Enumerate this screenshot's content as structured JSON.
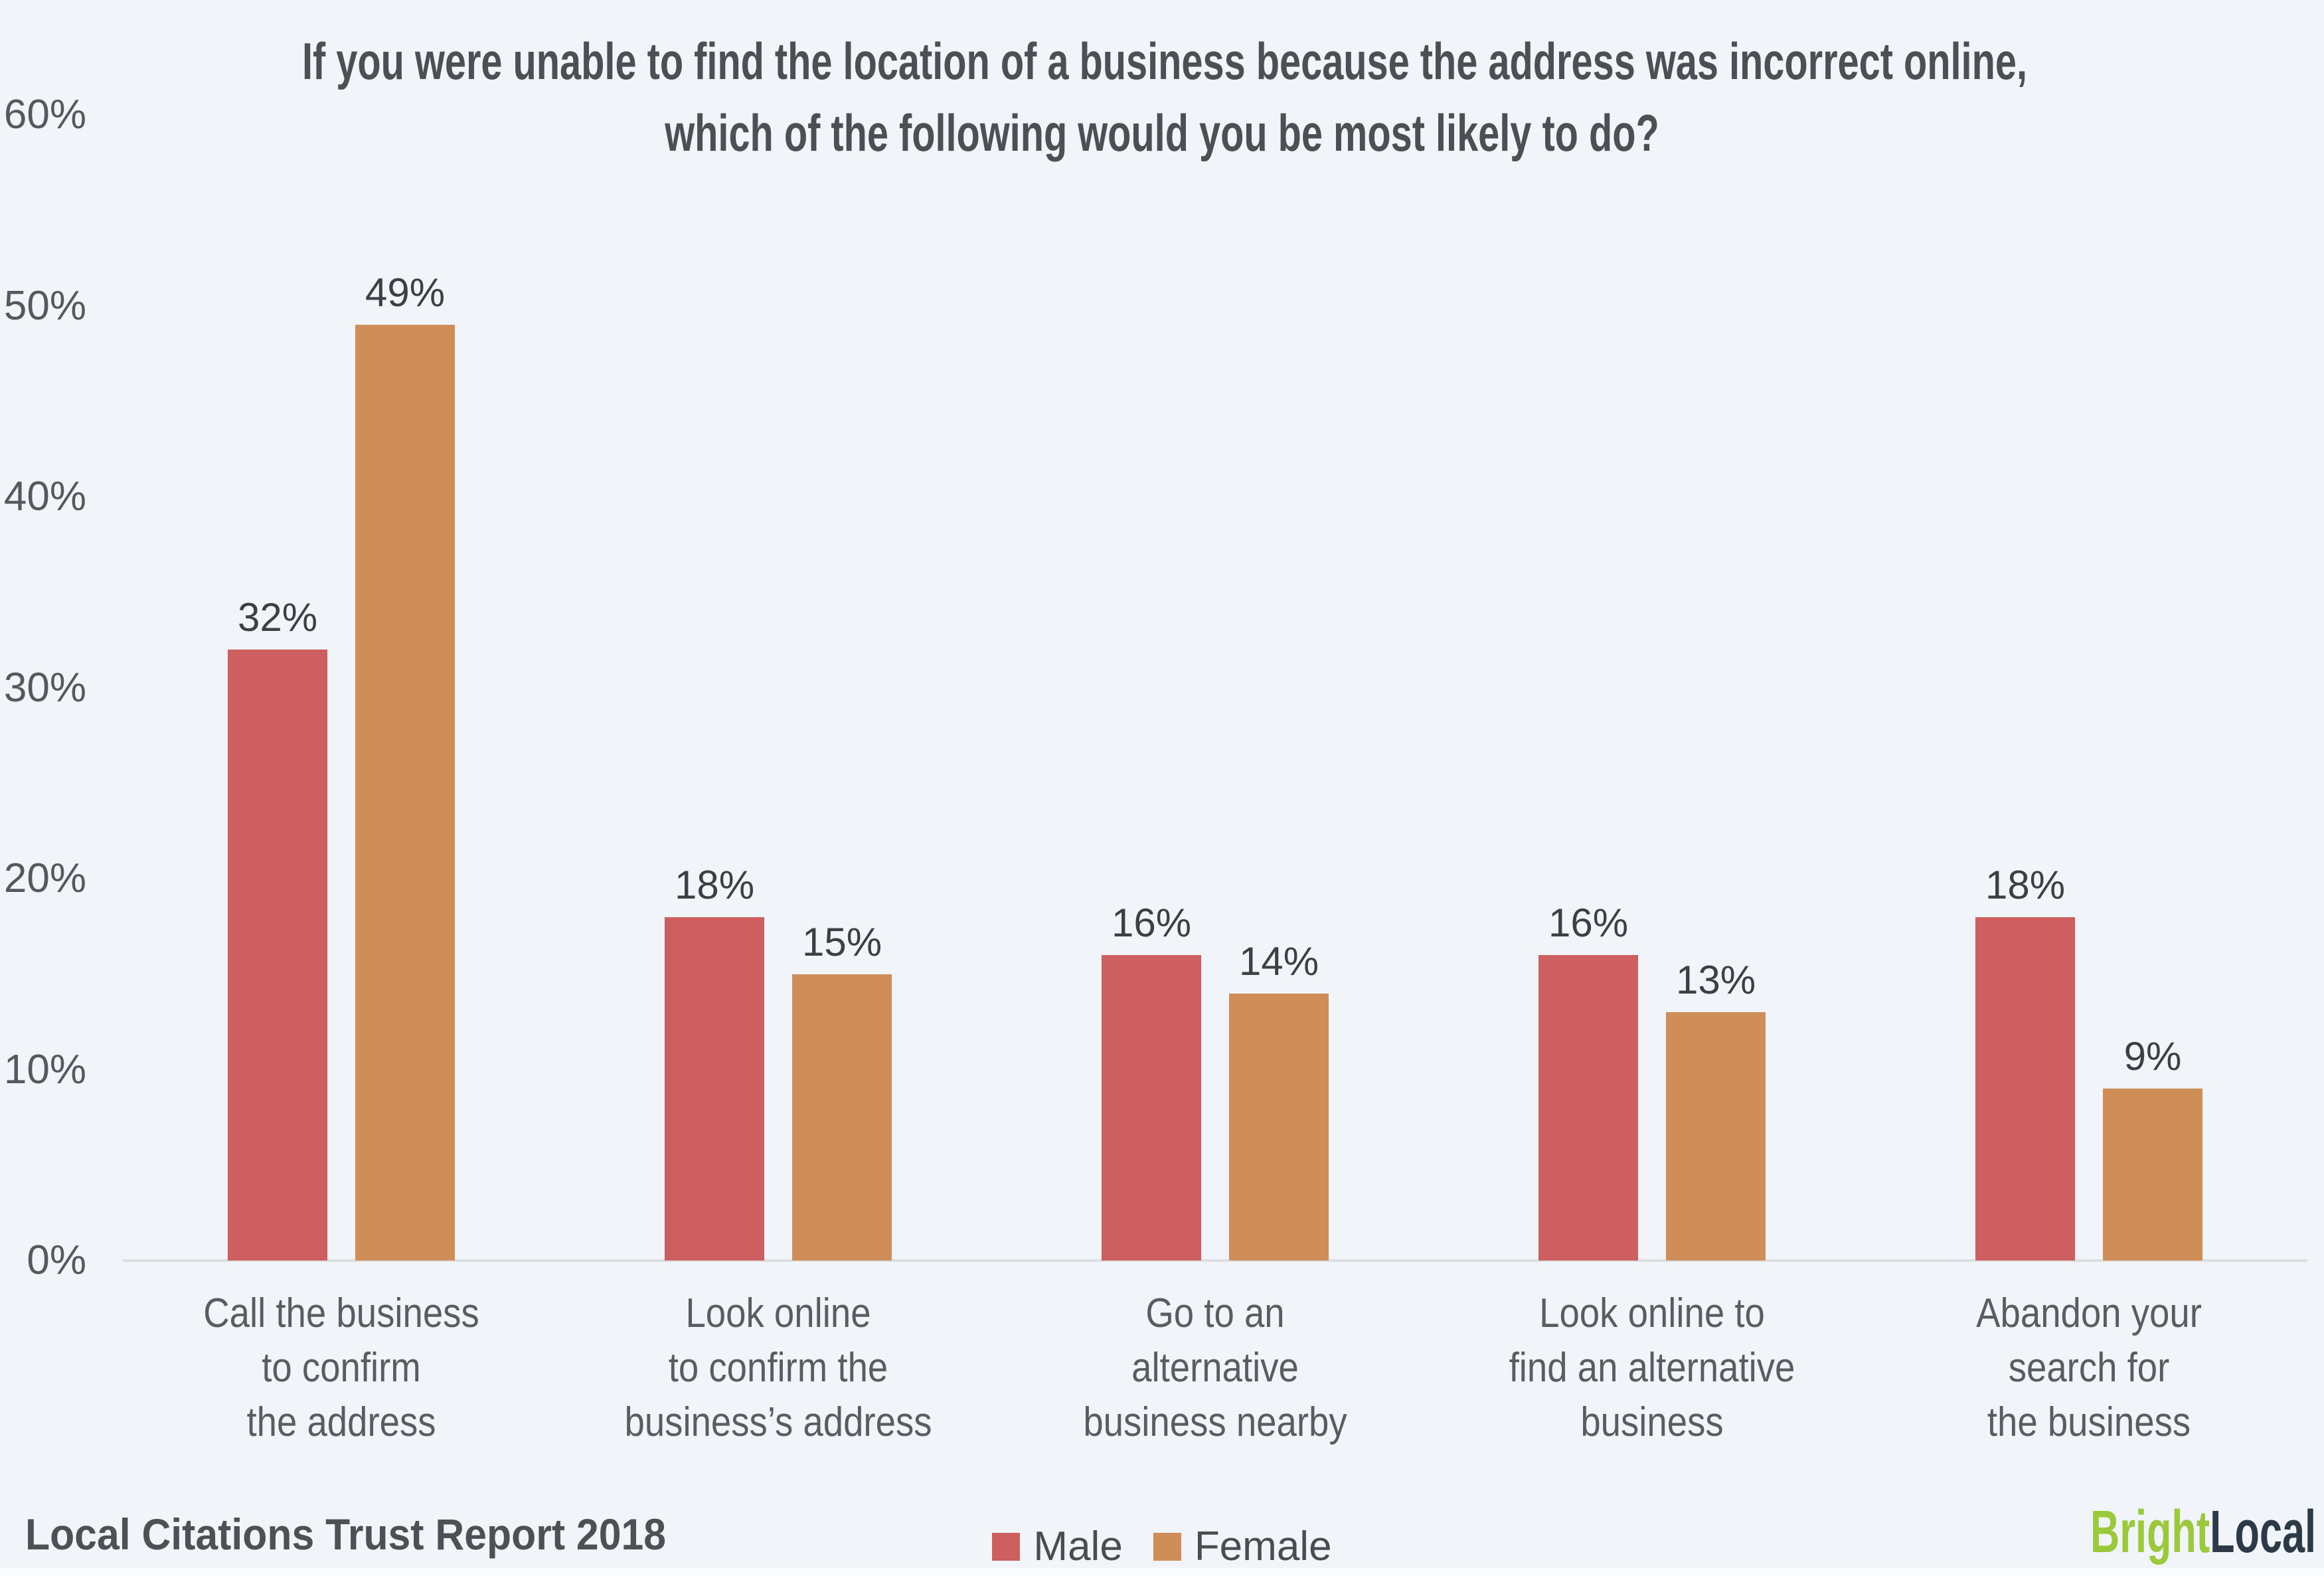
{
  "title": {
    "line1": "If you were unable to find the location of a business because the address was incorrect online,",
    "line2": "which of the following would you be most likely to do?"
  },
  "chart_data": {
    "type": "bar",
    "title": "If you were unable to find the location of a business because the address was incorrect online, which of the following would you be most likely to do?",
    "categories": [
      "Call the business\nto confirm\nthe address",
      "Look online\nto confirm the\nbusiness’s address",
      "Go to an\nalternative\nbusiness nearby",
      "Look online to\nfind an alternative\nbusiness",
      "Abandon your\nsearch for\nthe business"
    ],
    "series": [
      {
        "name": "Male",
        "color": "#cd5f60",
        "values": [
          32,
          18,
          16,
          16,
          18
        ]
      },
      {
        "name": "Female",
        "color": "#cf8d58",
        "values": [
          49,
          15,
          14,
          13,
          9
        ]
      }
    ],
    "value_suffix": "%",
    "y_ticks": [
      "60%",
      "50%",
      "40%",
      "30%",
      "20%",
      "10%",
      "0%"
    ],
    "ylim": [
      0,
      60
    ],
    "grid": false,
    "legend_position": "bottom-center"
  },
  "footer": {
    "source": "Local Citations Trust Report 2018",
    "logo": {
      "part1": "Bright",
      "part2": "Local"
    }
  },
  "colors": {
    "background": "#f1f5f9",
    "male": "#cd5f60",
    "female": "#cf8d58",
    "axis_line": "#dcdfe2",
    "title_text": "#4c4f53",
    "tick_text": "#55585c",
    "value_text": "#3d4043",
    "category_text": "#5a5d60",
    "source_text": "#4e5154",
    "legend_text": "#4a4d50",
    "logo_green": "#9aca3c",
    "logo_navy": "#2c3946"
  }
}
